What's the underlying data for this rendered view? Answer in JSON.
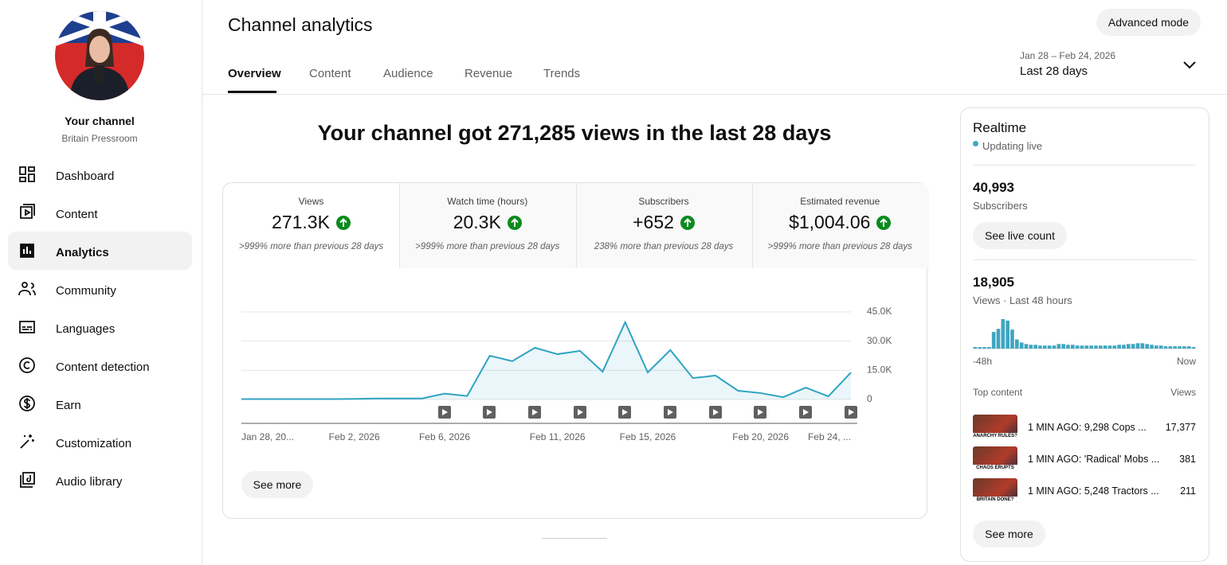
{
  "sidebar": {
    "channel_label": "Your channel",
    "channel_name": "Britain Pressroom",
    "nav": [
      "Dashboard",
      "Content",
      "Analytics",
      "Community",
      "Languages",
      "Content detection",
      "Earn",
      "Customization",
      "Audio library"
    ]
  },
  "header": {
    "title": "Channel analytics",
    "button": "Advanced mode",
    "tabs": [
      "Overview",
      "Content",
      "Audience",
      "Revenue",
      "Trends"
    ],
    "date_range": "Jan 28 – Feb 24, 2026",
    "period": "Last 28 days"
  },
  "summary": {
    "headline": "Your channel got 271,285 views in the last 28 days",
    "metrics": [
      {
        "label": "Views",
        "value": "271.3K",
        "note": ">999% more than previous 28 days"
      },
      {
        "label": "Watch time (hours)",
        "value": "20.3K",
        "note": ">999% more than previous 28 days"
      },
      {
        "label": "Subscribers",
        "value": "+652",
        "note": "238% more than previous 28 days"
      },
      {
        "label": "Estimated revenue",
        "value": "$1,004.06",
        "note": ">999% more than previous 28 days"
      }
    ],
    "see_more": "See more"
  },
  "realtime": {
    "title": "Realtime",
    "status": "Updating live",
    "subscribers": "40,993",
    "subscribers_label": "Subscribers",
    "live_button": "See live count",
    "views": "18,905",
    "views_label": "Views · Last 48 hours",
    "start_label": "-48h",
    "end_label": "Now",
    "top_header": "Top content",
    "views_header": "Views",
    "top": [
      {
        "thumb": "ANARCHY RULES?",
        "title": "1 MIN AGO: 9,298 Cops ...",
        "views": "17,377"
      },
      {
        "thumb": "CHAOS ERUPTS",
        "title": "1 MIN AGO: 'Radical' Mobs ...",
        "views": "381"
      },
      {
        "thumb": "BRITAIN DONE?",
        "title": "1 MIN AGO: 5,248 Tractors ...",
        "views": "211"
      }
    ],
    "see_more": "See more"
  },
  "chart_data": [
    {
      "type": "line",
      "categories": [
        "Jan 28, 20...",
        null,
        null,
        null,
        null,
        "Feb 2, 2026",
        null,
        null,
        null,
        "Feb 6, 2026",
        null,
        null,
        null,
        null,
        "Feb 11, 2026",
        null,
        null,
        null,
        "Feb 15, 2026",
        null,
        null,
        null,
        null,
        "Feb 20, 2026",
        null,
        null,
        null,
        "Feb 24, ..."
      ],
      "values": [
        200,
        200,
        200,
        200,
        200,
        300,
        500,
        500,
        500,
        3000,
        1800,
        22500,
        19700,
        26600,
        23300,
        25000,
        14300,
        39700,
        13900,
        25400,
        11000,
        12300,
        4500,
        3300,
        1200,
        6100,
        1600,
        13900
      ],
      "color": "#2fa4c2",
      "ylim": [
        0,
        45000
      ],
      "yticks": [
        0,
        {
          "value": 15000,
          "label": "15.0K"
        },
        {
          "value": 30000,
          "label": "30.0K"
        },
        {
          "value": 45000,
          "label": "45.0K"
        }
      ],
      "grid": true
    },
    {
      "type": "bar",
      "values": [
        100,
        100,
        100,
        100,
        1100,
        1300,
        1950,
        1850,
        1250,
        600,
        400,
        300,
        250,
        250,
        200,
        200,
        200,
        200,
        300,
        300,
        250,
        250,
        200,
        200,
        200,
        200,
        200,
        200,
        200,
        200,
        200,
        250,
        250,
        300,
        300,
        350,
        350,
        300,
        250,
        200,
        200,
        150,
        150,
        150,
        150,
        150,
        150,
        100
      ],
      "color": "#3ea6c0"
    }
  ]
}
